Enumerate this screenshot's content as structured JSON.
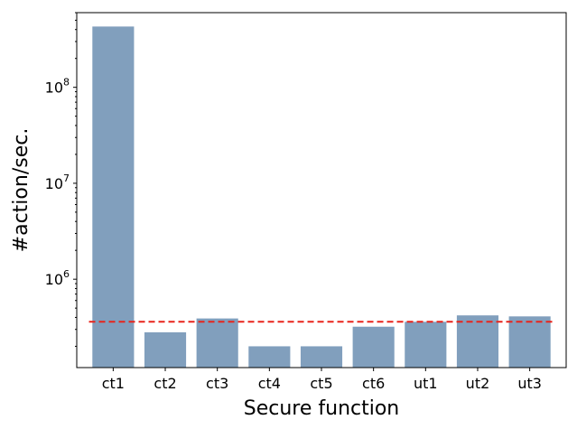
{
  "chart_data": {
    "type": "bar",
    "title": "",
    "xlabel": "Secure function",
    "ylabel": "#action/sec.",
    "yscale": "log",
    "ylim": [
      120000,
      600000000
    ],
    "grid": false,
    "categories": [
      "ct1",
      "ct2",
      "ct3",
      "ct4",
      "ct5",
      "ct6",
      "ut1",
      "ut2",
      "ut3"
    ],
    "values": [
      430000000,
      280000,
      390000,
      200000,
      200000,
      320000,
      360000,
      420000,
      410000
    ],
    "bar_color": "#819FBD",
    "reference_line": {
      "value": 360000,
      "style": "dashed",
      "color": "#E8231B"
    },
    "yticks": [
      {
        "value": 1000000,
        "base": "10",
        "exp": "6"
      },
      {
        "value": 10000000,
        "base": "10",
        "exp": "7"
      },
      {
        "value": 100000000,
        "base": "10",
        "exp": "8"
      }
    ]
  }
}
